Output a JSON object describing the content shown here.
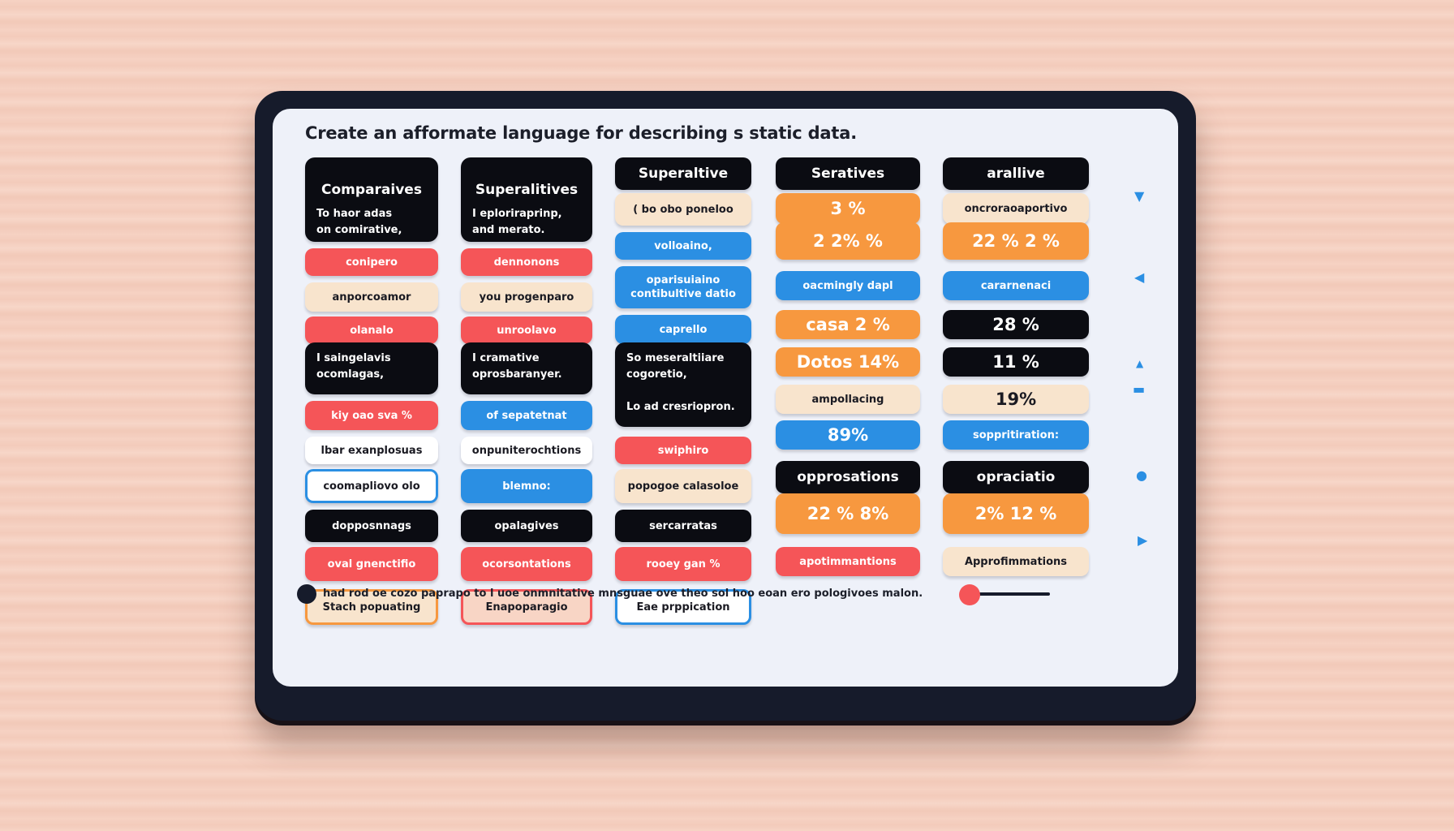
{
  "title": "Create an afformate language for describing s static data.",
  "col1": {
    "header": "Comparaives",
    "header_text": "To haor adas\non comirative,",
    "p1": "conipero",
    "p2": "anporcoamor",
    "p3": "olanalo",
    "box2": "I saingelavis\nocomlagas,",
    "p4": "kiy oao sva %",
    "p5": "lbar exanplosuas",
    "p6": "coomapliovo olo",
    "p7": "dopposnnags",
    "p8": "oval gnenctifio",
    "p9": "Stach popuating"
  },
  "col2": {
    "header": "Superalitives",
    "header_text": "I eploriraprinp,\nand merato.",
    "p1": "dennonons",
    "p2": "you progenparo",
    "p3": "unroolavo",
    "box2": "I cramative\noprosbaranyer.",
    "p4": "of sepatetnat",
    "p5": "onpuniterochtions",
    "p6": "blemno:",
    "p7": "opalagives",
    "p8": "ocorsontations",
    "p9": "Enapoparagio"
  },
  "col3": {
    "header": "Superaltive",
    "p1": "( bo obo poneloo",
    "p2": "volloaino,",
    "p3": "oparisuiaino\ncontibultive datio",
    "p4": "caprello",
    "box": "So meseraltiiare\ncogoretio,\n\nLo ad cresriopron.",
    "p5": "swiphiro",
    "p6": "popogoe calasoloe",
    "p7": "sercarratas",
    "p8": "rooey gan %",
    "p9": "Eae prppication"
  },
  "col4": {
    "header": "Seratives",
    "s1": "3 %",
    "s2": "2  2%  %",
    "p1": "oacmingly dapl",
    "p2": "casa  2 %",
    "p3": "Dotos  14%",
    "p4": "ampollacing",
    "p5": "89%",
    "p6": "opprosations",
    "s3": "22 %  8%",
    "p7": "apotimmantions"
  },
  "col5": {
    "header": "arallive",
    "p1": "oncroraoaportivo",
    "s1": "22 %  2 %",
    "p2": "cararnenaci",
    "p3": "28 %",
    "p4": "11 %",
    "p5": "19%",
    "p6": "soppritiration:",
    "p7": "opraciatio",
    "s2": "2%  12 %",
    "p8": "Approfimmations"
  },
  "footer": {
    "text": "had rod oe cozo paprapo to l uoe onmnitative mnsguae ove theo sol hoo eoan ero pologivoes malon."
  },
  "icons": [
    "arrow-down-icon",
    "arrow-left-icon",
    "arrow-up-icon",
    "dash-icon",
    "shape-icon",
    "play-icon"
  ],
  "colors": {
    "black": "#0b0c12",
    "red": "#f55558",
    "cream": "#f8e4cd",
    "blue": "#2b8fe3",
    "orange": "#f7983f",
    "bezel": "#161b2b"
  }
}
